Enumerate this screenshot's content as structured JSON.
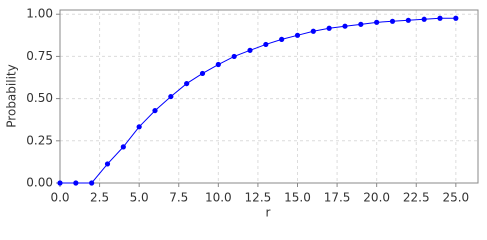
{
  "chart_data": {
    "type": "line",
    "x_label": "r",
    "y_label": "Probability",
    "x": [
      0,
      1,
      2,
      3,
      4,
      5,
      6,
      7,
      8,
      9,
      10,
      11,
      12,
      13,
      14,
      15,
      16,
      17,
      18,
      19,
      20,
      21,
      22,
      23,
      24,
      25
    ],
    "series": [
      {
        "color": "#0000ff",
        "values": [
          0,
          0,
          0,
          0.113,
          0.214,
          0.333,
          0.429,
          0.512,
          0.589,
          0.649,
          0.702,
          0.75,
          0.786,
          0.821,
          0.851,
          0.875,
          0.899,
          0.917,
          0.929,
          0.94,
          0.952,
          0.958,
          0.964,
          0.97,
          0.976,
          0.976
        ]
      }
    ],
    "xlim": [
      0,
      26.4
    ],
    "ylim": [
      0,
      1.025
    ],
    "xticks": [
      {
        "value": 0,
        "label": "0.0"
      },
      {
        "value": 2.5,
        "label": "2.5"
      },
      {
        "value": 5,
        "label": "5.0"
      },
      {
        "value": 7.5,
        "label": "7.5"
      },
      {
        "value": 10,
        "label": "10.0"
      },
      {
        "value": 12.5,
        "label": "12.5"
      },
      {
        "value": 15,
        "label": "15.0"
      },
      {
        "value": 17.5,
        "label": "17.5"
      },
      {
        "value": 20,
        "label": "20.0"
      },
      {
        "value": 22.5,
        "label": "22.5"
      },
      {
        "value": 25,
        "label": "25.0"
      }
    ],
    "yticks": [
      {
        "value": 0,
        "label": "0.00"
      },
      {
        "value": 0.25,
        "label": "0.25"
      },
      {
        "value": 0.5,
        "label": "0.50"
      },
      {
        "value": 0.75,
        "label": "0.75"
      },
      {
        "value": 1,
        "label": "1.00"
      }
    ],
    "grid": true
  }
}
